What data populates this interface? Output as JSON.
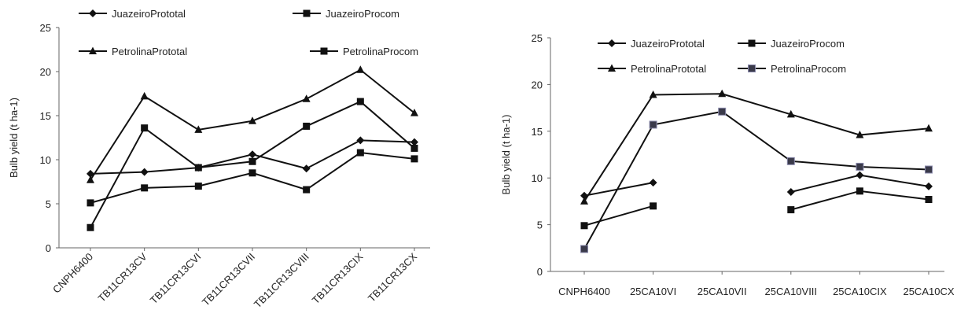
{
  "chart_data": [
    {
      "type": "line",
      "ylabel": "Bulb yield (t ha-1)",
      "ylim": [
        0,
        25
      ],
      "yticks": [
        0,
        5,
        10,
        15,
        20,
        25
      ],
      "categories": [
        "CNPH6400",
        "TB11CR13CV",
        "TB11CR13CVI",
        "TB11CR13CVII",
        "TB11CR13CVIII",
        "TB11CR13CIX",
        "TB11CR13CX"
      ],
      "series": [
        {
          "name": "JuazeiroPrototal",
          "marker": "diamond",
          "values": [
            8.4,
            8.6,
            9.1,
            10.6,
            9.0,
            12.2,
            12.0
          ]
        },
        {
          "name": "JuazeiroProcom",
          "marker": "square",
          "values": [
            5.1,
            6.8,
            7.0,
            8.5,
            6.6,
            10.8,
            10.1
          ]
        },
        {
          "name": "PetrolinaPrototal",
          "marker": "triangle",
          "values": [
            7.7,
            17.2,
            13.4,
            14.4,
            16.9,
            20.2,
            15.3
          ]
        },
        {
          "name": "PetrolinaProcom",
          "marker": "square",
          "values": [
            2.3,
            13.6,
            9.1,
            9.8,
            13.8,
            16.6,
            11.3
          ]
        }
      ],
      "legend": "top"
    },
    {
      "type": "line",
      "ylabel": "Bulb yield (t ha-1)",
      "ylim": [
        0,
        25
      ],
      "yticks": [
        0,
        5,
        10,
        15,
        20,
        25
      ],
      "categories": [
        "CNPH6400",
        "25CA10VI",
        "25CA10VII",
        "25CA10VIII",
        "25CA10CIX",
        "25CA10CX"
      ],
      "series": [
        {
          "name": "JuazeiroPrototal",
          "marker": "diamond",
          "values": [
            8.1,
            9.5,
            null,
            8.5,
            10.3,
            9.1
          ]
        },
        {
          "name": "JuazeiroProcom",
          "marker": "square",
          "values": [
            4.9,
            7.0,
            null,
            6.6,
            8.6,
            7.7
          ]
        },
        {
          "name": "PetrolinaPrototal",
          "marker": "triangle",
          "values": [
            7.5,
            18.9,
            19.0,
            16.8,
            14.6,
            15.3
          ]
        },
        {
          "name": "PetrolinaProcom",
          "marker": "square-open",
          "values": [
            2.4,
            15.7,
            17.1,
            11.8,
            11.2,
            10.9
          ]
        }
      ],
      "legend": "top"
    }
  ]
}
